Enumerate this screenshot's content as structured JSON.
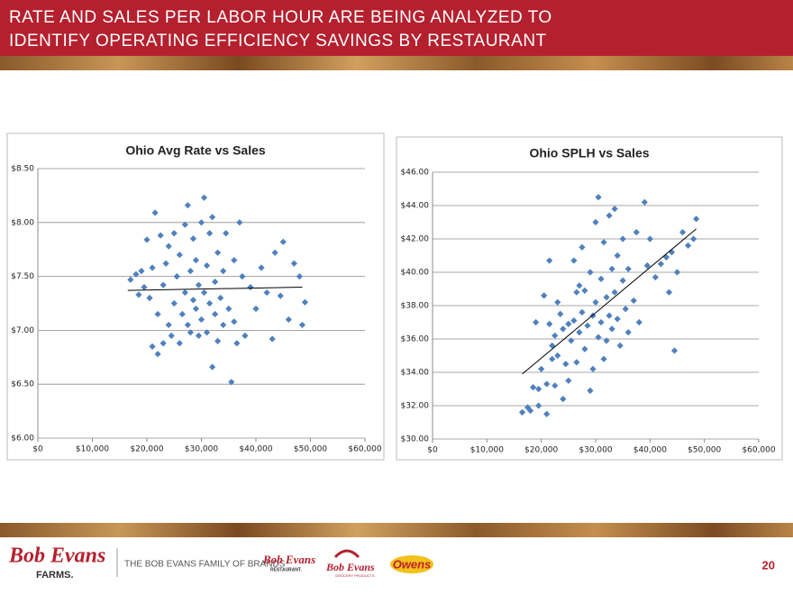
{
  "header": {
    "title_lines": [
      "RATE AND SALES PER LABOR HOUR ARE BEING ANALYZED TO",
      "IDENTIFY OPERATING EFFICIENCY SAVINGS BY RESTAURANT"
    ]
  },
  "footer": {
    "logo_main": "Bob Evans",
    "logo_sub": "FARMS.",
    "family": "THE BOB EVANS FAMILY OF BRANDS",
    "brand1": "Bob Evans",
    "brand1_sub": "RESTAURANT.",
    "brand2": "Bob Evans",
    "brand2_sub": "GROCERY PRODUCTS",
    "brand3": "Owens",
    "page": "20"
  },
  "chart_data": [
    {
      "type": "scatter",
      "title": "Ohio Avg Rate vs Sales",
      "color": "#4f81bd",
      "grid": true,
      "xlim": [
        0,
        60000
      ],
      "ylim": [
        6,
        8.5
      ],
      "xticks": [
        {
          "value": 0,
          "label": "$0"
        },
        {
          "value": 10000,
          "label": "$10,000"
        },
        {
          "value": 20000,
          "label": "$20,000"
        },
        {
          "value": 30000,
          "label": "$30,000"
        },
        {
          "value": 40000,
          "label": "$40,000"
        },
        {
          "value": 50000,
          "label": "$50,000"
        },
        {
          "value": 60000,
          "label": "$60,000"
        }
      ],
      "yticks": [
        {
          "value": 6,
          "label": "$6.00"
        },
        {
          "value": 6.5,
          "label": "$6.50"
        },
        {
          "value": 7,
          "label": "$7.00"
        },
        {
          "value": 7.5,
          "label": "$7.50"
        },
        {
          "value": 8,
          "label": "$8.00"
        },
        {
          "value": 8.5,
          "label": "$8.50"
        }
      ],
      "x": [
        17000,
        18000,
        18500,
        19000,
        19500,
        20000,
        20500,
        21000,
        21000,
        21500,
        22000,
        22000,
        22500,
        23000,
        23000,
        23500,
        24000,
        24000,
        24500,
        25000,
        25000,
        25500,
        26000,
        26000,
        26500,
        27000,
        27000,
        27500,
        27500,
        28000,
        28000,
        28500,
        28500,
        29000,
        29000,
        29500,
        29500,
        30000,
        30000,
        30500,
        30500,
        31000,
        31000,
        31500,
        31500,
        32000,
        32000,
        32500,
        32500,
        33000,
        33000,
        33500,
        34000,
        34000,
        34500,
        35000,
        35500,
        36000,
        36000,
        36500,
        37000,
        37500,
        38000,
        39000,
        40000,
        41000,
        42000,
        43000,
        43500,
        44500,
        45000,
        46000,
        47000,
        48000,
        48500,
        49000
      ],
      "y": [
        7.47,
        7.52,
        7.33,
        7.55,
        7.4,
        7.84,
        7.3,
        7.58,
        6.85,
        8.09,
        7.15,
        6.78,
        7.88,
        7.42,
        6.88,
        7.62,
        7.78,
        7.05,
        6.95,
        7.25,
        7.9,
        7.5,
        6.88,
        7.7,
        7.15,
        7.35,
        7.98,
        8.16,
        7.05,
        7.55,
        6.98,
        7.85,
        7.28,
        7.2,
        7.65,
        6.95,
        7.42,
        8.0,
        7.1,
        8.23,
        7.35,
        7.6,
        6.98,
        7.9,
        7.25,
        8.05,
        6.66,
        7.45,
        7.15,
        7.72,
        6.9,
        7.3,
        7.55,
        7.05,
        7.9,
        7.2,
        6.52,
        7.65,
        7.08,
        6.88,
        8.0,
        7.5,
        6.95,
        7.4,
        7.2,
        7.58,
        7.35,
        6.92,
        7.72,
        7.32,
        7.82,
        7.1,
        7.62,
        7.5,
        7.05,
        7.26
      ],
      "trendline": {
        "x": [
          16500,
          48500
        ],
        "y": [
          7.37,
          7.4
        ]
      }
    },
    {
      "type": "scatter",
      "title": "Ohio SPLH vs Sales",
      "color": "#4f81bd",
      "grid": true,
      "xlim": [
        0,
        60000
      ],
      "ylim": [
        30,
        46
      ],
      "xticks": [
        {
          "value": 0,
          "label": "$0"
        },
        {
          "value": 10000,
          "label": "$10,000"
        },
        {
          "value": 20000,
          "label": "$20,000"
        },
        {
          "value": 30000,
          "label": "$30,000"
        },
        {
          "value": 40000,
          "label": "$40,000"
        },
        {
          "value": 50000,
          "label": "$50,000"
        },
        {
          "value": 60000,
          "label": "$60,000"
        }
      ],
      "yticks": [
        {
          "value": 30,
          "label": "$30.00"
        },
        {
          "value": 32,
          "label": "$32.00"
        },
        {
          "value": 34,
          "label": "$34.00"
        },
        {
          "value": 36,
          "label": "$36.00"
        },
        {
          "value": 38,
          "label": "$38.00"
        },
        {
          "value": 40,
          "label": "$40.00"
        },
        {
          "value": 42,
          "label": "$42.00"
        },
        {
          "value": 44,
          "label": "$44.00"
        },
        {
          "value": 46,
          "label": "$46.00"
        }
      ],
      "x": [
        16500,
        17500,
        18000,
        18500,
        19000,
        19500,
        19500,
        20000,
        20500,
        21000,
        21000,
        21500,
        21500,
        22000,
        22000,
        22500,
        22500,
        23000,
        23000,
        23500,
        24000,
        24000,
        24500,
        25000,
        25000,
        25500,
        26000,
        26000,
        26500,
        26500,
        27000,
        27000,
        27500,
        27500,
        28000,
        28000,
        28500,
        29000,
        29000,
        29500,
        29500,
        30000,
        30000,
        30500,
        30500,
        31000,
        31000,
        31500,
        31500,
        32000,
        32000,
        32500,
        32500,
        33000,
        33000,
        33500,
        33500,
        34000,
        34000,
        34500,
        35000,
        35000,
        35500,
        36000,
        36000,
        37000,
        37500,
        38000,
        39000,
        39500,
        40000,
        41000,
        42000,
        43000,
        43500,
        44000,
        44500,
        45000,
        46000,
        47000,
        48000,
        48500
      ],
      "y": [
        31.6,
        31.9,
        31.7,
        33.1,
        37.0,
        33.0,
        32.0,
        34.2,
        38.6,
        33.3,
        31.5,
        40.7,
        36.9,
        35.6,
        34.8,
        33.2,
        36.2,
        38.2,
        35.0,
        37.5,
        32.4,
        36.6,
        34.5,
        36.9,
        33.5,
        35.9,
        40.7,
        37.1,
        38.8,
        34.6,
        39.2,
        36.4,
        41.5,
        37.6,
        35.4,
        38.9,
        36.8,
        40.0,
        32.9,
        37.4,
        34.2,
        43.0,
        38.2,
        36.1,
        44.5,
        39.6,
        37.0,
        34.8,
        41.8,
        38.5,
        35.9,
        43.4,
        37.4,
        40.2,
        36.6,
        43.8,
        38.8,
        37.2,
        41.0,
        35.6,
        39.5,
        42.0,
        37.8,
        40.2,
        36.4,
        38.3,
        42.4,
        37.0,
        44.2,
        40.4,
        42.0,
        39.7,
        40.5,
        40.9,
        38.8,
        41.2,
        35.3,
        40.0,
        42.4,
        41.6,
        42.0,
        43.2
      ],
      "trendline": {
        "x": [
          16500,
          48500
        ],
        "y": [
          33.9,
          42.6
        ]
      }
    }
  ]
}
